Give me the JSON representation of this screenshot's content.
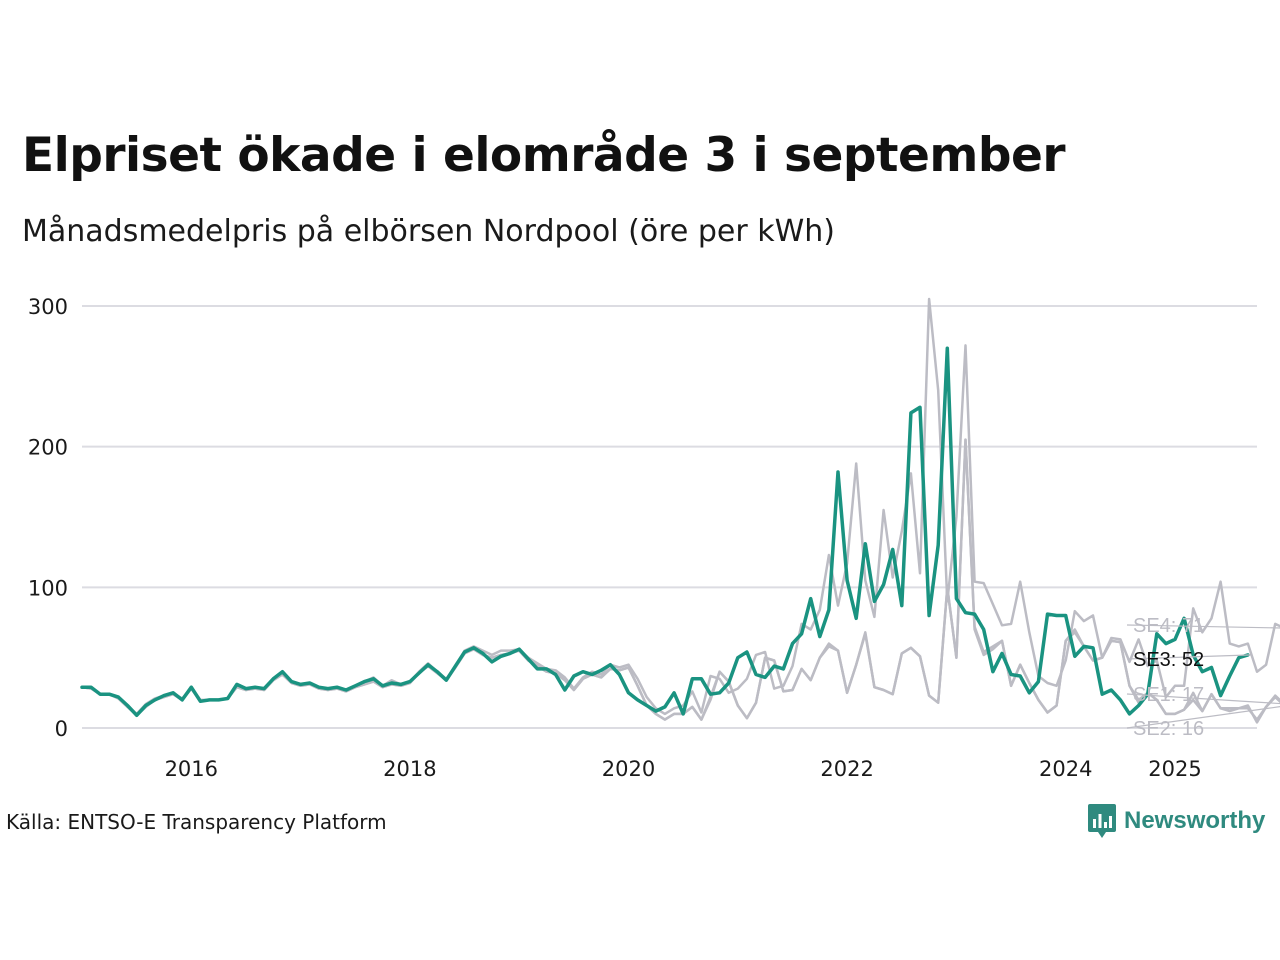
{
  "header": {
    "title": "Elpriset ökade i elområde 3 i september",
    "subtitle": "Månadsmedelpris på elbörsen Nordpool (öre per kWh)"
  },
  "footer": {
    "source": "Källa: ENTSO-E Transparency Platform",
    "brand": "Newsworthy"
  },
  "colors": {
    "highlight": "#1a9381",
    "muted": "#bcbcc4",
    "grid": "#dcdce2"
  },
  "chart_data": {
    "type": "line",
    "title": "Elpriset ökade i elområde 3 i september",
    "subtitle": "Månadsmedelpris på elbörsen Nordpool (öre per kWh)",
    "xlabel": "",
    "ylabel": "",
    "ylim": [
      0,
      300
    ],
    "xlim": [
      2015.0,
      2025.75
    ],
    "yticks": [
      0,
      100,
      200,
      300
    ],
    "xticks": [
      {
        "value": 2016.0,
        "label": "2016"
      },
      {
        "value": 2018.0,
        "label": "2018"
      },
      {
        "value": 2020.0,
        "label": "2020"
      },
      {
        "value": 2022.0,
        "label": "2022"
      },
      {
        "value": 2024.0,
        "label": "2024"
      },
      {
        "value": 2025.0,
        "label": "2025"
      }
    ],
    "grid": true,
    "start": "2015-01",
    "end_labels": [
      {
        "series": "SE4",
        "text": "SE4: 71",
        "value": 71
      },
      {
        "series": "SE3",
        "text": "SE3: 52",
        "value": 52
      },
      {
        "series": "SE1",
        "text": "SE1: 17",
        "value": 17
      },
      {
        "series": "SE2",
        "text": "SE2: 16",
        "value": 16
      }
    ],
    "series": [
      {
        "name": "SE4",
        "highlight": false,
        "values": [
          29,
          29,
          24,
          24,
          22,
          16,
          10,
          17,
          21,
          23,
          25,
          21,
          29,
          20,
          20,
          20,
          21,
          30,
          28,
          29,
          28,
          35,
          40,
          33,
          31,
          32,
          29,
          28,
          29,
          27,
          30,
          33,
          36,
          30,
          34,
          31,
          33,
          40,
          46,
          40,
          35,
          44,
          55,
          58,
          55,
          52,
          55,
          55,
          56,
          50,
          46,
          42,
          41,
          36,
          28,
          36,
          40,
          38,
          45,
          43,
          45,
          35,
          22,
          14,
          10,
          14,
          16,
          26,
          11,
          37,
          35,
          25,
          28,
          35,
          52,
          54,
          28,
          30,
          44,
          74,
          70,
          84,
          123,
          87,
          117,
          188,
          105,
          79,
          155,
          107,
          140,
          181,
          110,
          305,
          240,
          90,
          150,
          272,
          104,
          103,
          88,
          73,
          74,
          104,
          68,
          37,
          32,
          30,
          48,
          83,
          76,
          80,
          50,
          64,
          63,
          47,
          63,
          44,
          48,
          22,
          30,
          30,
          85,
          68,
          78,
          104,
          60,
          58,
          60,
          40,
          45,
          74,
          71
        ]
      },
      {
        "name": "SE2",
        "highlight": false,
        "values": [
          29,
          28,
          24,
          24,
          21,
          15,
          9,
          15,
          20,
          22,
          24,
          20,
          28,
          19,
          20,
          20,
          21,
          29,
          27,
          28,
          27,
          34,
          38,
          32,
          30,
          31,
          28,
          27,
          28,
          26,
          29,
          31,
          33,
          29,
          31,
          30,
          32,
          39,
          44,
          39,
          34,
          43,
          53,
          56,
          52,
          50,
          52,
          53,
          55,
          48,
          44,
          40,
          39,
          34,
          27,
          35,
          38,
          36,
          42,
          41,
          43,
          30,
          16,
          10,
          6,
          10,
          10,
          15,
          6,
          20,
          40,
          33,
          16,
          7,
          18,
          50,
          48,
          26,
          27,
          42,
          34,
          50,
          58,
          55,
          25,
          45,
          67,
          29,
          27,
          24,
          53,
          57,
          51,
          23,
          18,
          100,
          50,
          205,
          70,
          52,
          56,
          62,
          30,
          45,
          32,
          20,
          11,
          16,
          62,
          68,
          58,
          48,
          50,
          62,
          61,
          30,
          20,
          25,
          20,
          10,
          10,
          13,
          20,
          12,
          24,
          14,
          14,
          14,
          16,
          4,
          15,
          22,
          16
        ]
      },
      {
        "name": "SE1",
        "highlight": false,
        "values": [
          29,
          28,
          24,
          24,
          21,
          15,
          9,
          15,
          20,
          22,
          24,
          20,
          28,
          19,
          20,
          20,
          21,
          29,
          27,
          28,
          27,
          34,
          38,
          32,
          30,
          31,
          28,
          27,
          28,
          26,
          29,
          31,
          33,
          29,
          31,
          30,
          32,
          39,
          44,
          39,
          34,
          43,
          53,
          56,
          52,
          50,
          52,
          53,
          55,
          48,
          44,
          40,
          39,
          34,
          27,
          35,
          38,
          36,
          42,
          41,
          43,
          30,
          16,
          10,
          6,
          10,
          10,
          15,
          6,
          22,
          40,
          33,
          16,
          7,
          18,
          50,
          48,
          26,
          27,
          42,
          34,
          50,
          60,
          55,
          25,
          45,
          68,
          29,
          27,
          24,
          53,
          57,
          51,
          23,
          18,
          100,
          50,
          205,
          72,
          54,
          58,
          62,
          30,
          45,
          32,
          20,
          11,
          16,
          62,
          70,
          58,
          48,
          50,
          62,
          61,
          30,
          18,
          25,
          20,
          10,
          10,
          13,
          25,
          12,
          24,
          14,
          12,
          14,
          14,
          6,
          15,
          23,
          17
        ]
      },
      {
        "name": "SE3",
        "highlight": true,
        "values": [
          29,
          29,
          24,
          24,
          22,
          16,
          9,
          16,
          20,
          23,
          25,
          20,
          29,
          19,
          20,
          20,
          21,
          31,
          28,
          29,
          28,
          35,
          40,
          33,
          31,
          32,
          29,
          28,
          29,
          27,
          30,
          33,
          35,
          30,
          32,
          31,
          33,
          39,
          45,
          40,
          34,
          44,
          54,
          57,
          53,
          47,
          51,
          53,
          56,
          49,
          42,
          42,
          38,
          27,
          37,
          40,
          38,
          41,
          45,
          38,
          25,
          20,
          16,
          12,
          15,
          25,
          10,
          35,
          35,
          24,
          25,
          32,
          50,
          54,
          38,
          36,
          44,
          42,
          60,
          67,
          92,
          65,
          84,
          182,
          105,
          78,
          131,
          90,
          102,
          127,
          87,
          224,
          228,
          80,
          130,
          270,
          92,
          82,
          81,
          70,
          40,
          53,
          38,
          37,
          25,
          33,
          81,
          80,
          80,
          51,
          58,
          57,
          24,
          27,
          20,
          10,
          16,
          24,
          67,
          60,
          63,
          78,
          52,
          40,
          43,
          23,
          37,
          50,
          52
        ]
      }
    ]
  }
}
